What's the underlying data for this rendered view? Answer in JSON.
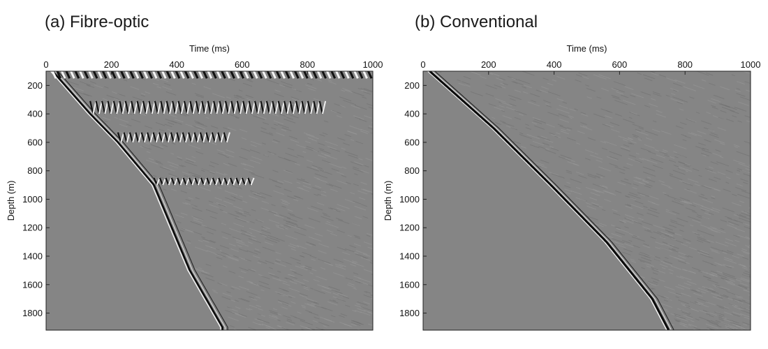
{
  "panels": [
    {
      "title": "(a) Fibre-optic",
      "xlabel": "Time (ms)",
      "ylabel": "Depth (m)"
    },
    {
      "title": "(b) Conventional",
      "xlabel": "Time (ms)",
      "ylabel": "Depth (m)"
    }
  ],
  "chart_data": [
    {
      "type": "heatmap",
      "title": "(a) Fibre-optic",
      "xlabel": "Time (ms)",
      "ylabel": "Depth (m)",
      "xlim": [
        0,
        1000
      ],
      "ylim": [
        100,
        1920
      ],
      "y_inverted": true,
      "x_ticks": [
        0,
        200,
        400,
        600,
        800,
        1000
      ],
      "y_ticks": [
        200,
        400,
        600,
        800,
        1000,
        1200,
        1400,
        1600,
        1800
      ],
      "colormap": "grayscale seismic wiggle (gray background)",
      "first_break": {
        "depth_m": [
          100,
          400,
          600,
          900,
          1200,
          1500,
          1900
        ],
        "time_ms": [
          20,
          135,
          220,
          330,
          385,
          440,
          540
        ]
      },
      "strong_reflections_depth_m": [
        400,
        600,
        900
      ],
      "grid": false
    },
    {
      "type": "heatmap",
      "title": "(b) Conventional",
      "xlabel": "Time (ms)",
      "ylabel": "Depth (m)",
      "xlim": [
        0,
        1000
      ],
      "ylim": [
        100,
        1920
      ],
      "y_inverted": true,
      "x_ticks": [
        0,
        200,
        400,
        600,
        800,
        1000
      ],
      "y_ticks": [
        200,
        400,
        600,
        800,
        1000,
        1200,
        1400,
        1600,
        1800
      ],
      "colormap": "grayscale seismic wiggle (gray background)",
      "first_break": {
        "depth_m": [
          100,
          500,
          900,
          1300,
          1700,
          1920
        ],
        "time_ms": [
          20,
          215,
          390,
          560,
          700,
          750
        ]
      },
      "grid": false
    }
  ]
}
